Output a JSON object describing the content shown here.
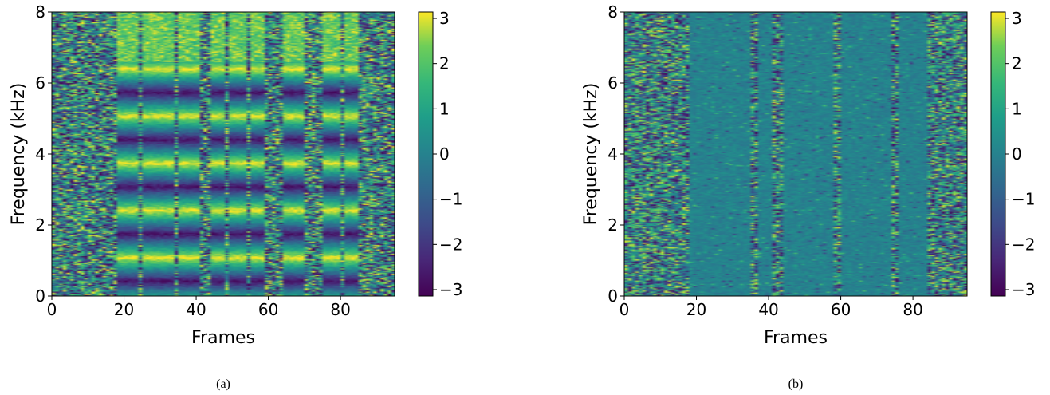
{
  "chart_data": [
    {
      "type": "heatmap",
      "panel": "(a)",
      "xlabel": "Frames",
      "ylabel": "Frequency (kHz)",
      "xlim": [
        0,
        95
      ],
      "ylim": [
        0,
        8
      ],
      "xticks": [
        0,
        20,
        40,
        60,
        80
      ],
      "yticks": [
        0,
        2,
        4,
        6,
        8
      ],
      "colorbar": {
        "range": [
          -3.14159,
          3.14159
        ],
        "ticks": [
          3,
          2,
          1,
          0,
          -1,
          -2,
          -3
        ],
        "tick_labels": [
          "3",
          "2",
          "1",
          "0",
          "−1",
          "−2",
          "−3"
        ],
        "colormap": "viridis"
      },
      "speech_segments": [
        [
          18,
          24
        ],
        [
          25,
          34
        ],
        [
          35,
          41
        ],
        [
          44,
          48
        ],
        [
          49,
          54
        ],
        [
          55,
          59
        ],
        [
          64,
          70
        ],
        [
          75,
          80
        ],
        [
          81,
          85
        ]
      ]
    },
    {
      "type": "heatmap",
      "panel": "(b)",
      "xlabel": "Frames",
      "ylabel": "Frequency (kHz)",
      "xlim": [
        0,
        95
      ],
      "ylim": [
        0,
        8
      ],
      "xticks": [
        0,
        20,
        40,
        60,
        80
      ],
      "yticks": [
        0,
        2,
        4,
        6,
        8
      ],
      "colorbar": {
        "range": [
          -3.14159,
          3.14159
        ],
        "ticks": [
          3,
          2,
          1,
          0,
          -1,
          -2,
          -3
        ],
        "tick_labels": [
          "3",
          "2",
          "1",
          "0",
          "−1",
          "−2",
          "−3"
        ],
        "colormap": "viridis"
      },
      "speech_segments": [
        [
          18,
          35
        ],
        [
          37,
          41
        ],
        [
          44,
          58
        ],
        [
          60,
          74
        ],
        [
          76,
          84
        ]
      ]
    }
  ],
  "captions": [
    "(a)",
    "(b)"
  ],
  "colors": {
    "viridis_low": "#440154",
    "viridis_mid": "#21918c",
    "viridis_high": "#fde725"
  }
}
